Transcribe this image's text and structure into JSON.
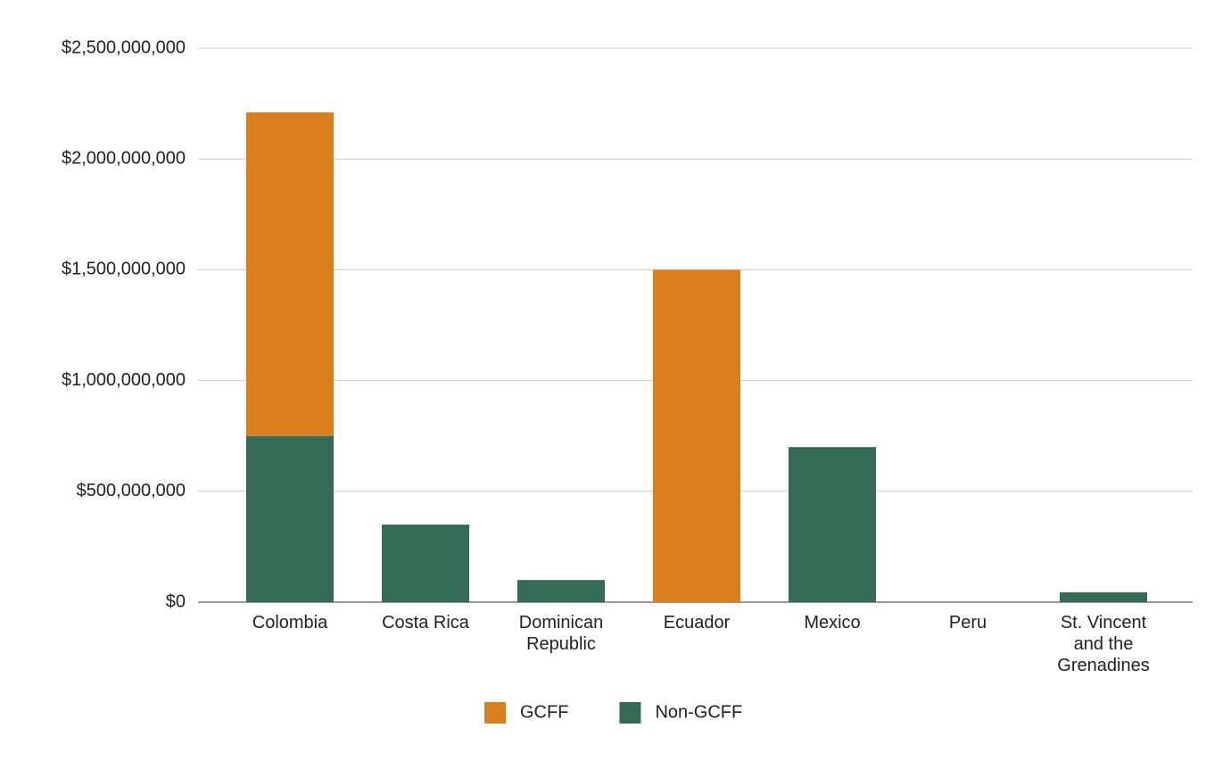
{
  "chart_data": {
    "type": "stacked_bar",
    "categories": [
      "Colombia",
      "Costa Rica",
      "Dominican Republic",
      "Ecuador",
      "Mexico",
      "Peru",
      "St. Vincent and the Grenadines"
    ],
    "series": [
      {
        "name": "GCFF",
        "color": "#d97f1e",
        "values": [
          1460000000,
          0,
          0,
          1500000000,
          0,
          0,
          0
        ]
      },
      {
        "name": "Non-GCFF",
        "color": "#356a56",
        "values": [
          750000000,
          350000000,
          100000000,
          0,
          700000000,
          0,
          45000000
        ]
      }
    ],
    "ylim": [
      0,
      2500000000
    ],
    "yticks": [
      {
        "value": 0,
        "label": "$0"
      },
      {
        "value": 500000000,
        "label": "$500,000,000"
      },
      {
        "value": 1000000000,
        "label": "$1,000,000,000"
      },
      {
        "value": 1500000000,
        "label": "$1,500,000,000"
      },
      {
        "value": 2000000000,
        "label": "$2,000,000,000"
      },
      {
        "value": 2500000000,
        "label": "$2,500,000,000"
      }
    ],
    "grid": true,
    "legend": "bottom"
  }
}
